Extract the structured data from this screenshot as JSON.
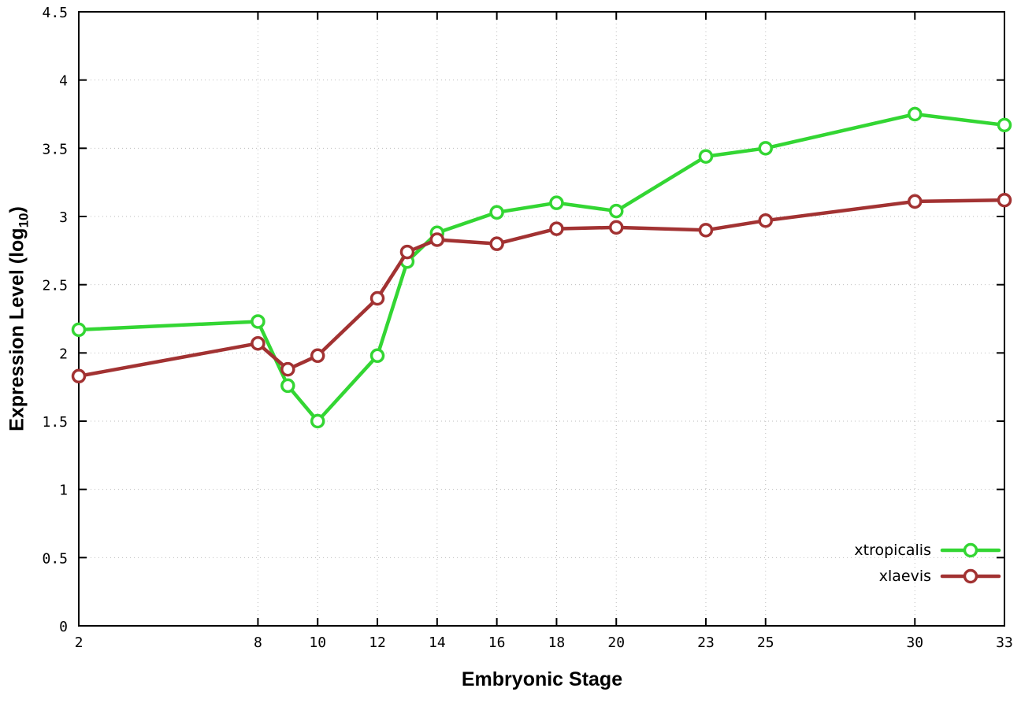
{
  "chart_data": {
    "type": "line",
    "xlabel": "Embryonic Stage",
    "ylabel": {
      "prefix": "Expression Level (log",
      "subscript": "10",
      "suffix": ")"
    },
    "grid": true,
    "legend": {
      "position": "bottom-right",
      "entries": [
        "xtropicalis",
        "xlaevis"
      ]
    },
    "x_axis": {
      "ticks": [
        2,
        8,
        10,
        12,
        14,
        16,
        18,
        20,
        23,
        25,
        30,
        33
      ],
      "range": [
        2,
        33
      ]
    },
    "y_axis": {
      "ticks": [
        0,
        0.5,
        1,
        1.5,
        2,
        2.5,
        3,
        3.5,
        4,
        4.5
      ],
      "range": [
        0,
        4.5
      ]
    },
    "x": [
      2,
      8,
      9,
      10,
      12,
      13,
      14,
      16,
      18,
      20,
      23,
      25,
      30,
      33
    ],
    "series": [
      {
        "name": "xtropicalis",
        "color": "#33d633",
        "marker": "open-circle",
        "values": [
          2.17,
          2.23,
          1.76,
          1.5,
          1.98,
          2.67,
          2.88,
          3.03,
          3.1,
          3.04,
          3.44,
          3.5,
          3.75,
          3.67
        ]
      },
      {
        "name": "xlaevis",
        "color": "#a23232",
        "marker": "open-circle",
        "values": [
          1.83,
          2.07,
          1.88,
          1.98,
          2.4,
          2.74,
          2.83,
          2.8,
          2.91,
          2.92,
          2.9,
          2.97,
          3.11,
          3.12
        ]
      }
    ]
  }
}
